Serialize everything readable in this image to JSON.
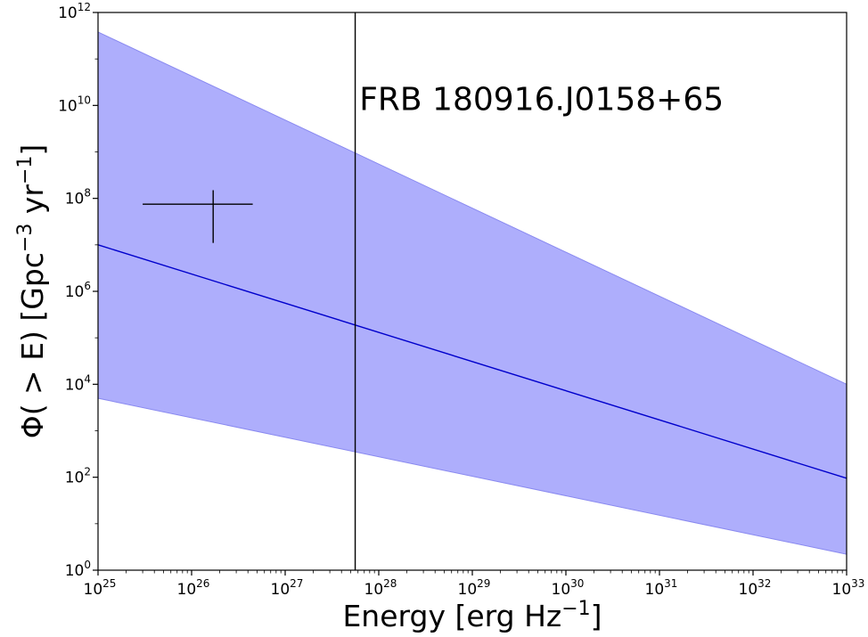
{
  "chart_data": {
    "type": "area",
    "xscale": "log",
    "yscale": "log",
    "xlim": [
      1e+25,
      1e+33
    ],
    "ylim": [
      1,
      1000000000000.0
    ],
    "xlabel": "Energy [erg Hz⁻¹]",
    "ylabel": "Φ( > E) [Gpc⁻³ yr⁻¹]",
    "x_ticks": [
      {
        "base": "10",
        "exp": "25",
        "value": 1e+25
      },
      {
        "base": "10",
        "exp": "26",
        "value": 1e+26
      },
      {
        "base": "10",
        "exp": "27",
        "value": 1e+27
      },
      {
        "base": "10",
        "exp": "28",
        "value": 1e+28
      },
      {
        "base": "10",
        "exp": "29",
        "value": 1e+29
      },
      {
        "base": "10",
        "exp": "30",
        "value": 1e+30
      },
      {
        "base": "10",
        "exp": "31",
        "value": 1e+31
      },
      {
        "base": "10",
        "exp": "32",
        "value": 1e+32
      },
      {
        "base": "10",
        "exp": "33",
        "value": 1e+33
      }
    ],
    "y_ticks": [
      {
        "base": "10",
        "exp": "0",
        "value": 1
      },
      {
        "base": "10",
        "exp": "2",
        "value": 100
      },
      {
        "base": "10",
        "exp": "4",
        "value": 10000.0
      },
      {
        "base": "10",
        "exp": "6",
        "value": 1000000.0
      },
      {
        "base": "10",
        "exp": "8",
        "value": 100000000.0
      },
      {
        "base": "10",
        "exp": "10",
        "value": 10000000000.0
      },
      {
        "base": "10",
        "exp": "12",
        "value": 1000000000000.0
      }
    ],
    "band": {
      "color": "#aeaefc",
      "edge_color": "#8a8af0",
      "x": [
        1e+25,
        1e+33
      ],
      "upper": [
        380000000000.0,
        10000.0
      ],
      "lower": [
        5000.0,
        2.2
      ]
    },
    "line": {
      "color": "#0000cc",
      "x": [
        1e+25,
        1e+33
      ],
      "y": [
        10000000.0,
        95
      ]
    },
    "vline": {
      "x": 5.6e+27,
      "color": "#000000"
    },
    "annotation": {
      "text": "FRB 180916.J0158+65",
      "x": 6.2e+27,
      "y": 8000000000.0
    },
    "errorbar": {
      "x": 1.7e+26,
      "y": 75000000.0,
      "xerr": [
        3e+25,
        4.5e+26
      ],
      "yerr": [
        11000000.0,
        150000000.0
      ],
      "color": "#000000"
    },
    "grid": false,
    "legend": "none"
  }
}
